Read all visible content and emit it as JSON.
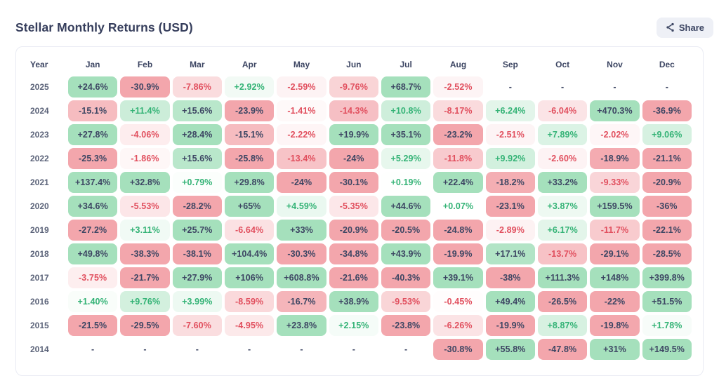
{
  "page": {
    "title": "Stellar Monthly Returns (USD)"
  },
  "share": {
    "label": "Share"
  },
  "chart_data": {
    "type": "heatmap",
    "title": "Stellar Monthly Returns (USD)",
    "row_header": "Year",
    "columns": [
      "Jan",
      "Feb",
      "Mar",
      "Apr",
      "May",
      "Jun",
      "Jul",
      "Aug",
      "Sep",
      "Oct",
      "Nov",
      "Dec"
    ],
    "years": [
      "2025",
      "2024",
      "2023",
      "2022",
      "2021",
      "2020",
      "2019",
      "2018",
      "2017",
      "2016",
      "2015",
      "2014"
    ],
    "empty_label": "-",
    "values": [
      [
        24.6,
        -30.9,
        -7.86,
        2.92,
        -2.59,
        -9.76,
        68.7,
        -2.52,
        null,
        null,
        null,
        null
      ],
      [
        -15.1,
        11.4,
        15.6,
        -23.9,
        -1.41,
        -14.3,
        10.8,
        -8.17,
        6.24,
        -6.04,
        470.3,
        -36.9
      ],
      [
        27.8,
        -4.06,
        28.4,
        -15.1,
        -2.22,
        19.9,
        35.1,
        -23.2,
        -2.51,
        7.89,
        -2.02,
        9.06
      ],
      [
        -25.3,
        -1.86,
        15.6,
        -25.8,
        -13.4,
        -24,
        5.29,
        -11.8,
        9.92,
        -2.6,
        -18.9,
        -21.1
      ],
      [
        137.4,
        32.8,
        0.79,
        29.8,
        -24,
        -30.1,
        0.19,
        22.4,
        -18.2,
        33.2,
        -9.33,
        -20.9
      ],
      [
        34.6,
        -5.53,
        -28.2,
        65,
        4.59,
        -5.35,
        44.6,
        0.07,
        -23.1,
        3.87,
        159.5,
        -36
      ],
      [
        -27.2,
        3.11,
        25.7,
        -6.64,
        33,
        -20.9,
        -20.5,
        -24.8,
        -2.89,
        6.17,
        -11.7,
        -22.1
      ],
      [
        49.8,
        -38.3,
        -38.1,
        104.4,
        -30.3,
        -34.8,
        43.9,
        -19.9,
        17.1,
        -13.7,
        -29.1,
        -28.5
      ],
      [
        -3.75,
        -21.7,
        27.9,
        106,
        608.8,
        -21.6,
        -40.3,
        39.1,
        -38,
        111.3,
        148,
        399.8
      ],
      [
        1.4,
        9.76,
        3.99,
        -8.59,
        -16.7,
        38.9,
        -9.53,
        -0.45,
        49.4,
        -26.5,
        -22,
        51.5
      ],
      [
        -21.5,
        -29.5,
        -7.6,
        -4.95,
        23.8,
        2.15,
        -23.8,
        -6.26,
        -19.9,
        8.87,
        -19.8,
        1.78
      ],
      [
        null,
        null,
        null,
        null,
        null,
        null,
        null,
        -30.8,
        55.8,
        -47.8,
        31,
        149.5
      ]
    ],
    "labels": [
      [
        "+24.6%",
        "-30.9%",
        "-7.86%",
        "+2.92%",
        "-2.59%",
        "-9.76%",
        "+68.7%",
        "-2.52%",
        "-",
        "-",
        "-",
        "-"
      ],
      [
        "-15.1%",
        "+11.4%",
        "+15.6%",
        "-23.9%",
        "-1.41%",
        "-14.3%",
        "+10.8%",
        "-8.17%",
        "+6.24%",
        "-6.04%",
        "+470.3%",
        "-36.9%"
      ],
      [
        "+27.8%",
        "-4.06%",
        "+28.4%",
        "-15.1%",
        "-2.22%",
        "+19.9%",
        "+35.1%",
        "-23.2%",
        "-2.51%",
        "+7.89%",
        "-2.02%",
        "+9.06%"
      ],
      [
        "-25.3%",
        "-1.86%",
        "+15.6%",
        "-25.8%",
        "-13.4%",
        "-24%",
        "+5.29%",
        "-11.8%",
        "+9.92%",
        "-2.60%",
        "-18.9%",
        "-21.1%"
      ],
      [
        "+137.4%",
        "+32.8%",
        "+0.79%",
        "+29.8%",
        "-24%",
        "-30.1%",
        "+0.19%",
        "+22.4%",
        "-18.2%",
        "+33.2%",
        "-9.33%",
        "-20.9%"
      ],
      [
        "+34.6%",
        "-5.53%",
        "-28.2%",
        "+65%",
        "+4.59%",
        "-5.35%",
        "+44.6%",
        "+0.07%",
        "-23.1%",
        "+3.87%",
        "+159.5%",
        "-36%"
      ],
      [
        "-27.2%",
        "+3.11%",
        "+25.7%",
        "-6.64%",
        "+33%",
        "-20.9%",
        "-20.5%",
        "-24.8%",
        "-2.89%",
        "+6.17%",
        "-11.7%",
        "-22.1%"
      ],
      [
        "+49.8%",
        "-38.3%",
        "-38.1%",
        "+104.4%",
        "-30.3%",
        "-34.8%",
        "+43.9%",
        "-19.9%",
        "+17.1%",
        "-13.7%",
        "-29.1%",
        "-28.5%"
      ],
      [
        "-3.75%",
        "-21.7%",
        "+27.9%",
        "+106%",
        "+608.8%",
        "-21.6%",
        "-40.3%",
        "+39.1%",
        "-38%",
        "+111.3%",
        "+148%",
        "+399.8%"
      ],
      [
        "+1.40%",
        "+9.76%",
        "+3.99%",
        "-8.59%",
        "-16.7%",
        "+38.9%",
        "-9.53%",
        "-0.45%",
        "+49.4%",
        "-26.5%",
        "-22%",
        "+51.5%"
      ],
      [
        "-21.5%",
        "-29.5%",
        "-7.60%",
        "-4.95%",
        "+23.8%",
        "+2.15%",
        "-23.8%",
        "-6.26%",
        "-19.9%",
        "+8.87%",
        "-19.8%",
        "+1.78%"
      ],
      [
        "-",
        "-",
        "-",
        "-",
        "-",
        "-",
        "-",
        "-30.8%",
        "+55.8%",
        "-47.8%",
        "+31%",
        "+149.5%"
      ]
    ],
    "palette": {
      "positive_bg": "#a5e0bc",
      "negative_bg": "#f3a6ac",
      "positive_text": "#34b376",
      "negative_text": "#e14f5e",
      "neutral_text": "#3d4663"
    }
  }
}
